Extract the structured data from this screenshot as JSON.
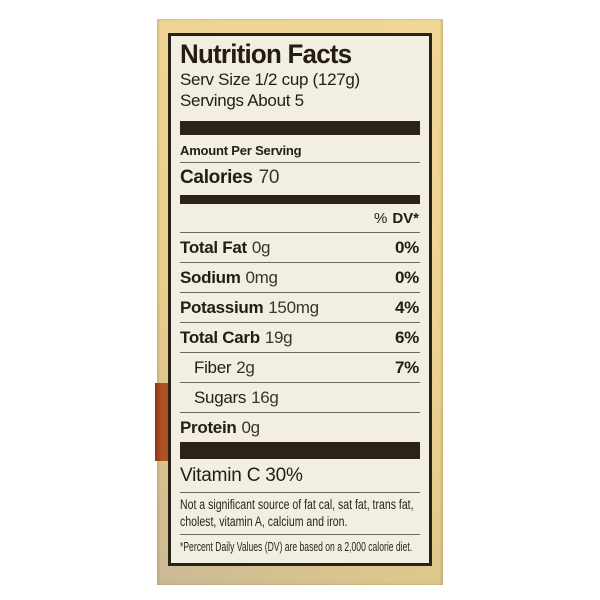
{
  "colors": {
    "page_background": "#ffffff",
    "package_tan": "#eed392",
    "package_tan_shaded": "#c9b995",
    "red_stripe": "#a64a1f",
    "label_background": "#f2eee2",
    "label_border": "#29221b",
    "divider_bar": "#2b2318",
    "text": "#231d16"
  },
  "label": {
    "title": "Nutrition Facts",
    "serving_size": "Serv Size 1/2 cup (127g)",
    "servings": "Servings About 5",
    "amount_per_serving": "Amount Per Serving",
    "calories_label": "Calories",
    "calories_value": "70",
    "dv_percent": "%",
    "dv_label": "DV*",
    "rows": [
      {
        "name": "Total Fat",
        "amount": "0g",
        "dv": "0%",
        "bold": true,
        "indent": false
      },
      {
        "name": "Sodium",
        "amount": "0mg",
        "dv": "0%",
        "bold": true,
        "indent": false
      },
      {
        "name": "Potassium",
        "amount": "150mg",
        "dv": "4%",
        "bold": true,
        "indent": false
      },
      {
        "name": "Total Carb",
        "amount": "19g",
        "dv": "6%",
        "bold": true,
        "indent": false
      },
      {
        "name": "Fiber",
        "amount": "2g",
        "dv": "7%",
        "bold": false,
        "indent": true
      },
      {
        "name": "Sugars",
        "amount": "16g",
        "dv": "",
        "bold": false,
        "indent": true
      },
      {
        "name": "Protein",
        "amount": "0g",
        "dv": "",
        "bold": true,
        "indent": false
      }
    ],
    "vitamin_line": "Vitamin C 30%",
    "not_significant": "Not a significant source of fat cal, sat fat, trans fat, cholest, vitamin A, calcium and iron.",
    "footnote": "*Percent Daily Values (DV) are based on a 2,000 calorie diet."
  }
}
